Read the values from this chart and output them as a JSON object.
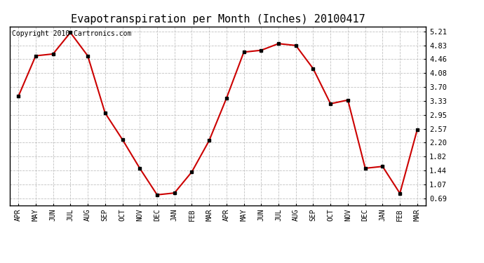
{
  "title": "Evapotranspiration per Month (Inches) 20100417",
  "copyright": "Copyright 2010 Cartronics.com",
  "months": [
    "APR",
    "MAY",
    "JUN",
    "JUL",
    "AUG",
    "SEP",
    "OCT",
    "NOV",
    "DEC",
    "JAN",
    "FEB",
    "MAR",
    "APR",
    "MAY",
    "JUN",
    "JUL",
    "AUG",
    "SEP",
    "OCT",
    "NOV",
    "DEC",
    "JAN",
    "FEB",
    "MAR"
  ],
  "values": [
    3.45,
    4.55,
    4.6,
    5.18,
    4.55,
    3.0,
    2.28,
    1.5,
    0.78,
    0.83,
    1.4,
    2.25,
    3.4,
    4.65,
    4.7,
    4.88,
    4.83,
    4.2,
    3.25,
    3.35,
    1.5,
    1.55,
    0.82,
    2.55
  ],
  "line_color": "#cc0000",
  "marker": "s",
  "marker_color": "#000000",
  "marker_size": 3,
  "bg_color": "#ffffff",
  "grid_color": "#bbbbbb",
  "yticks": [
    0.69,
    1.07,
    1.44,
    1.82,
    2.2,
    2.57,
    2.95,
    3.33,
    3.7,
    4.08,
    4.46,
    4.83,
    5.21
  ],
  "ylim": [
    0.5,
    5.35
  ],
  "title_fontsize": 11,
  "copyright_fontsize": 7
}
